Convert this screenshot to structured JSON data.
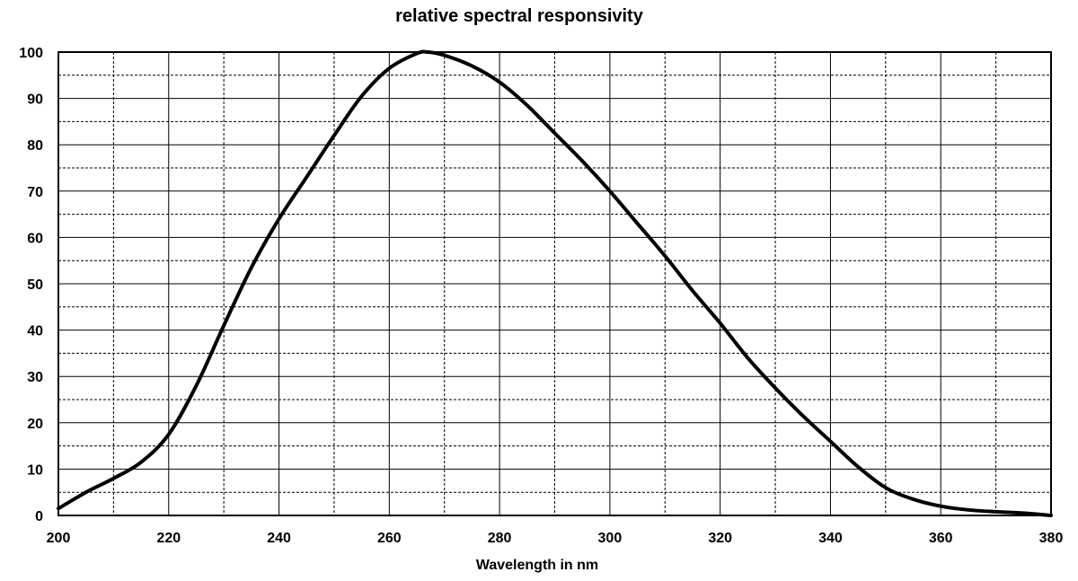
{
  "chart_data": {
    "type": "line",
    "title": "relative spectral responsivity",
    "xlabel": "Wavelength in nm",
    "ylabel": "",
    "xlim": [
      200,
      380
    ],
    "ylim": [
      0,
      100
    ],
    "x_ticks": [
      200,
      220,
      240,
      260,
      280,
      300,
      320,
      340,
      360,
      380
    ],
    "y_ticks": [
      0,
      10,
      20,
      30,
      40,
      50,
      60,
      70,
      80,
      90,
      100
    ],
    "x_minor_gridlines": [
      210,
      230,
      250,
      270,
      290,
      310,
      330,
      350,
      370
    ],
    "y_minor_gridlines": [
      5,
      15,
      25,
      35,
      45,
      55,
      65,
      75,
      85,
      95
    ],
    "grid": true,
    "legend": "none",
    "series": [
      {
        "color": "#000000",
        "x": [
          200,
          205,
          210,
          215,
          220,
          225,
          230,
          235,
          240,
          245,
          250,
          255,
          260,
          265,
          267,
          270,
          275,
          280,
          285,
          290,
          295,
          300,
          305,
          310,
          315,
          320,
          325,
          330,
          335,
          340,
          345,
          350,
          355,
          360,
          365,
          370,
          375,
          380
        ],
        "y": [
          1.5,
          5,
          8,
          11.5,
          17.5,
          28,
          41,
          53.5,
          64,
          73,
          82,
          90.5,
          96.5,
          99.7,
          100,
          99.3,
          97,
          93.5,
          88.5,
          82.5,
          76.5,
          70,
          63,
          56,
          48.5,
          41.5,
          34,
          27.5,
          21.5,
          16,
          10.5,
          6,
          3.5,
          2,
          1.2,
          0.8,
          0.5,
          0
        ]
      }
    ]
  }
}
